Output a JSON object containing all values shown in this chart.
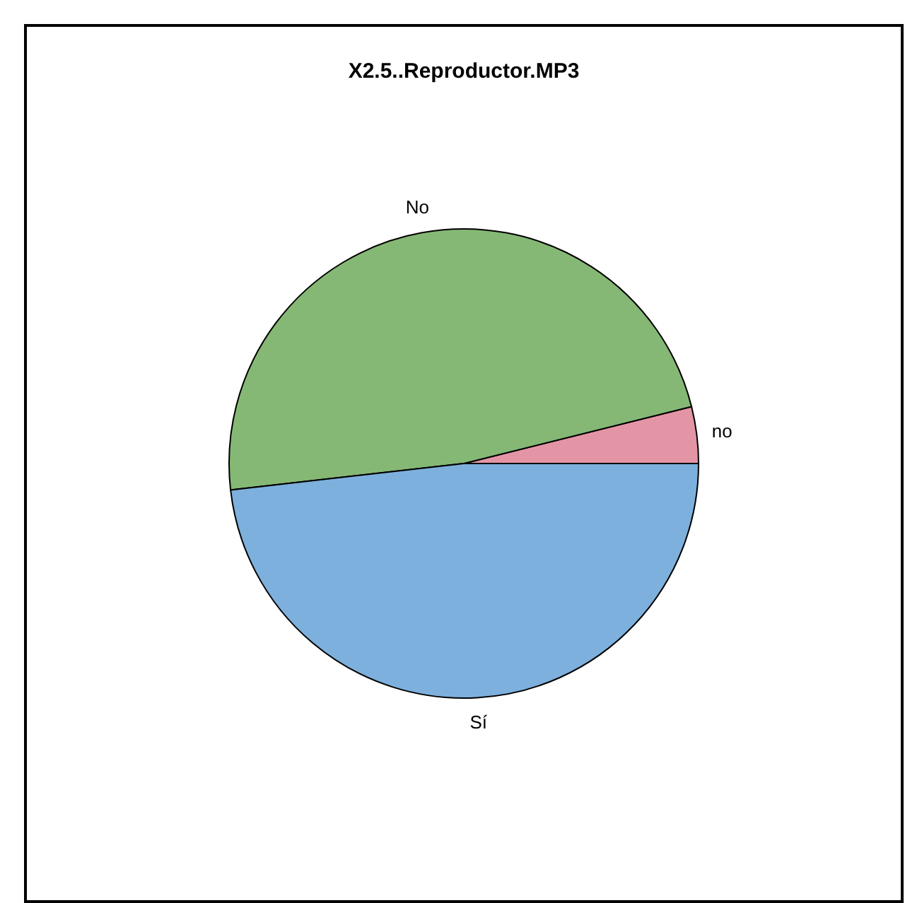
{
  "chart_data": {
    "type": "pie",
    "title": "X2.5..Reproductor.MP3",
    "categories": [
      "no",
      "No",
      "Sí"
    ],
    "values": [
      3.9,
      47.9,
      48.2
    ],
    "colors": [
      "#e495a5",
      "#86b875",
      "#7db0dd"
    ]
  }
}
